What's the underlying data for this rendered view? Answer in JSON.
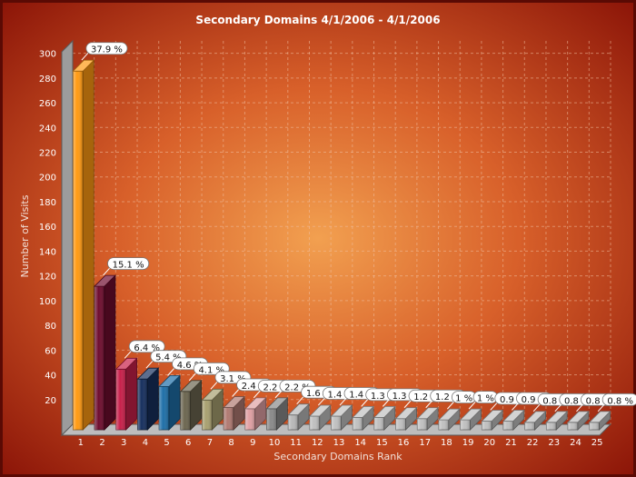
{
  "chart_data": {
    "type": "bar",
    "title": "Secondary Domains 4/1/2006  - 4/1/2006",
    "xlabel": "Secondary Domains Rank",
    "ylabel": "Number of Visits",
    "ylim": [
      0,
      310
    ],
    "yticks": [
      20,
      40,
      60,
      80,
      100,
      120,
      140,
      160,
      180,
      200,
      220,
      240,
      260,
      280,
      300
    ],
    "grid": true,
    "legend": "none",
    "categories": [
      "1",
      "2",
      "3",
      "4",
      "5",
      "6",
      "7",
      "8",
      "9",
      "10",
      "11",
      "12",
      "13",
      "14",
      "15",
      "16",
      "17",
      "18",
      "19",
      "20",
      "21",
      "22",
      "23",
      "24",
      "25"
    ],
    "values": [
      290,
      116,
      49,
      41,
      35,
      31,
      24,
      18,
      17,
      17,
      12,
      11,
      11,
      10,
      10,
      9,
      9,
      8,
      8,
      7,
      7,
      6,
      6,
      6,
      6
    ],
    "labels": [
      "37.9 %",
      "15.1 %",
      "6.4 %",
      "5.4 %",
      "4.6 %",
      "4.1 %",
      "3.1 %",
      "2.4 %",
      "2.2 %",
      "2.2 %",
      "1.6 %",
      "1.4 %",
      "1.4 %",
      "1.3 %",
      "1.3 %",
      "1.2 %",
      "1.2 %",
      "1 %",
      "1 %",
      "0.9 %",
      "0.9 %",
      "0.8 %",
      "0.8 %",
      "0.8 %",
      "0.8 %"
    ],
    "colors": [
      "#ff9a12",
      "#6e0c2e",
      "#c8204a",
      "#17305e",
      "#1f6fa8",
      "#6c6650",
      "#a8a070",
      "#b07a72",
      "#e0a0a4",
      "#8a8a8a",
      "#b8b8b8",
      "#c0c0c0",
      "#c0c0c0",
      "#c0c0c0",
      "#c0c0c0",
      "#c0c0c0",
      "#c0c0c0",
      "#c0c0c0",
      "#c0c0c0",
      "#c0c0c0",
      "#c0c0c0",
      "#c0c0c0",
      "#c0c0c0",
      "#c0c0c0",
      "#c0c0c0"
    ]
  }
}
